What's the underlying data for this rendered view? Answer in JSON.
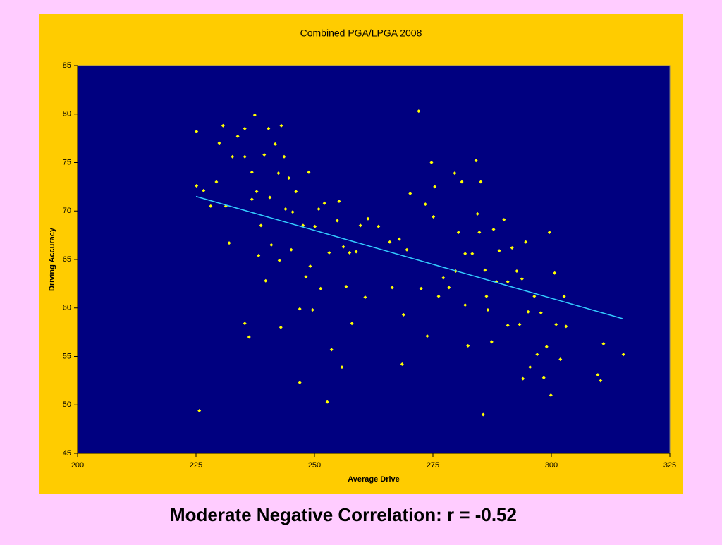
{
  "chart_data": {
    "type": "scatter",
    "title": "Combined PGA/LPGA 2008",
    "x_label": "Average Drive",
    "y_label": "Driving Accuracy",
    "xlim": [
      200,
      325
    ],
    "xticks": [
      200,
      225,
      250,
      275,
      300,
      325
    ],
    "ylim": [
      45,
      85
    ],
    "yticks": [
      45,
      50,
      55,
      60,
      65,
      70,
      75,
      80,
      85
    ],
    "grid": false,
    "color": "#ffff00",
    "background": "#000080",
    "x": [
      225.1,
      225.1,
      225.7,
      226.6,
      228.1,
      229.3,
      229.9,
      230.7,
      231.3,
      232.0,
      232.7,
      233.8,
      235.3,
      235.3,
      235.3,
      236.2,
      236.8,
      237.4,
      236.8,
      237.8,
      238.2,
      238.7,
      239.4,
      239.7,
      240.3,
      240.6,
      240.9,
      241.7,
      242.4,
      242.6,
      243.0,
      242.9,
      243.6,
      243.9,
      244.6,
      245.1,
      246.1,
      246.9,
      246.9,
      247.6,
      248.2,
      248.8,
      249.1,
      250.1,
      250.9,
      251.3,
      252.1,
      252.7,
      253.1,
      253.6,
      254.8,
      255.2,
      255.8,
      256.1,
      256.7,
      257.4,
      257.9,
      258.8,
      259.7,
      260.7,
      261.3,
      263.5,
      265.9,
      266.4,
      267.9,
      268.5,
      268.8,
      269.5,
      270.2,
      272.0,
      272.5,
      273.4,
      273.8,
      274.7,
      275.1,
      275.4,
      276.2,
      277.2,
      278.4,
      279.6,
      279.8,
      281.1,
      281.8,
      282.4,
      283.3,
      284.1,
      284.4,
      285.1,
      285.6,
      286.0,
      286.6,
      287.4,
      287.8,
      289.0,
      290.0,
      290.8,
      291.7,
      292.7,
      293.3,
      294.0,
      294.6,
      295.5,
      296.4,
      297.0,
      297.8,
      298.4,
      299.0,
      299.6,
      299.9,
      300.7,
      301.0,
      301.9,
      302.7,
      303.1,
      309.8,
      310.4,
      311.0,
      315.2,
      245.4,
      249.6,
      280.4,
      288.4,
      290.8,
      293.8,
      284.8,
      281.8,
      286.3,
      295.1
    ],
    "values": [
      72.6,
      78.2,
      49.4,
      72.1,
      70.5,
      73.0,
      77.0,
      78.8,
      70.5,
      66.7,
      75.6,
      77.7,
      78.5,
      75.6,
      58.4,
      57.0,
      71.2,
      79.9,
      74.0,
      72.0,
      65.4,
      68.5,
      75.8,
      62.8,
      78.5,
      71.4,
      66.5,
      76.9,
      73.9,
      64.9,
      78.8,
      58.0,
      75.6,
      70.2,
      73.4,
      66.0,
      72.0,
      59.9,
      52.3,
      68.5,
      63.2,
      74.0,
      64.3,
      68.4,
      70.2,
      62.0,
      70.8,
      50.3,
      65.7,
      55.7,
      69.0,
      71.0,
      53.9,
      66.3,
      62.2,
      65.7,
      58.4,
      65.8,
      68.5,
      61.1,
      69.2,
      68.4,
      66.8,
      62.1,
      67.1,
      54.2,
      59.3,
      66.0,
      71.8,
      80.3,
      62.0,
      70.7,
      57.1,
      75.0,
      69.4,
      72.5,
      61.2,
      63.1,
      62.1,
      73.9,
      63.8,
      73.0,
      60.3,
      56.1,
      65.6,
      75.2,
      69.7,
      73.0,
      49.0,
      63.9,
      59.8,
      56.5,
      68.1,
      65.9,
      69.1,
      58.2,
      66.2,
      63.8,
      58.3,
      52.7,
      66.8,
      53.9,
      61.2,
      55.2,
      59.5,
      52.8,
      56.0,
      67.8,
      51.0,
      63.6,
      58.3,
      54.7,
      61.2,
      58.1,
      53.1,
      52.5,
      56.3,
      55.2,
      69.9,
      59.8,
      67.8,
      62.7,
      62.7,
      63.0,
      67.8,
      65.6,
      61.2,
      59.6
    ],
    "trendline": {
      "color": "#33ccff",
      "x": [
        225,
        315
      ],
      "values": [
        71.5,
        58.9
      ]
    }
  },
  "caption": "Moderate Negative Correlation: r = -0.52"
}
